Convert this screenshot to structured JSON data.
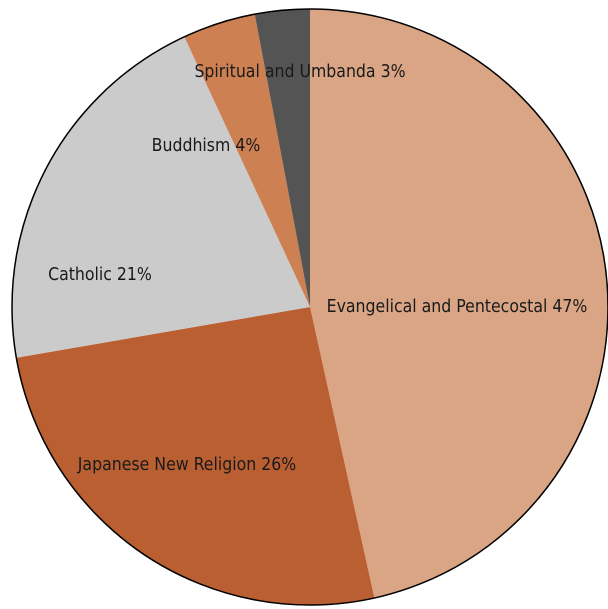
{
  "chart_data": {
    "type": "pie",
    "series": [
      {
        "name": "",
        "slices": [
          {
            "label": "Evangelical and Pentecostal 47%",
            "category": "Evangelical and Pentecostal",
            "value": 47,
            "color": "#d9a584"
          },
          {
            "label": "Japanese New Religion 26%",
            "category": "Japanese New Religion",
            "value": 26,
            "color": "#ba5f31"
          },
          {
            "label": "Catholic 21%",
            "category": "Catholic",
            "value": 21,
            "color": "#cbcbcb"
          },
          {
            "label": "Buddhism 4%",
            "category": "Buddhism",
            "value": 4,
            "color": "#cd8052"
          },
          {
            "label": "Spiritual and Umbanda 3%",
            "category": "Spiritual and Umbanda",
            "value": 3,
            "color": "#545454"
          }
        ]
      }
    ],
    "start": "12 o'clock",
    "direction": "clockwise",
    "outline_color": "#000000",
    "legend": "none"
  }
}
